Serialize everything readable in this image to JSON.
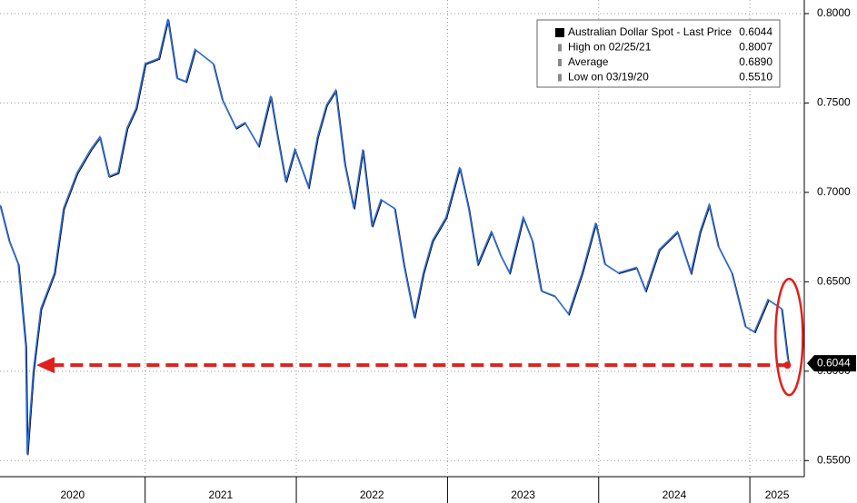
{
  "chart_data": {
    "type": "line",
    "legend": [
      {
        "label": "Australian Dollar Spot - Last Price",
        "value": "0.6044"
      },
      {
        "label": "High on 02/25/21",
        "value": "0.8007"
      },
      {
        "label": "Average",
        "value": "0.6890"
      },
      {
        "label": "Low on 03/19/20",
        "value": "0.5510"
      }
    ],
    "x": [
      2020.04,
      2020.1,
      2020.16,
      2020.21,
      2020.22,
      2020.26,
      2020.31,
      2020.4,
      2020.46,
      2020.55,
      2020.64,
      2020.7,
      2020.76,
      2020.82,
      2020.88,
      2020.94,
      2021.0,
      2021.09,
      2021.15,
      2021.21,
      2021.27,
      2021.33,
      2021.45,
      2021.51,
      2021.6,
      2021.66,
      2021.75,
      2021.83,
      2021.87,
      2021.93,
      2021.99,
      2022.08,
      2022.14,
      2022.2,
      2022.26,
      2022.32,
      2022.38,
      2022.44,
      2022.5,
      2022.56,
      2022.65,
      2022.71,
      2022.78,
      2022.84,
      2022.9,
      2022.99,
      2023.08,
      2023.14,
      2023.2,
      2023.29,
      2023.35,
      2023.41,
      2023.5,
      2023.56,
      2023.62,
      2023.71,
      2023.8,
      2023.89,
      2023.98,
      2024.04,
      2024.13,
      2024.25,
      2024.31,
      2024.4,
      2024.52,
      2024.61,
      2024.67,
      2024.73,
      2024.79,
      2024.88,
      2024.97,
      2025.03,
      2025.12,
      2025.21,
      2025.25,
      2025.26
    ],
    "series": [
      {
        "name": "Australian Dollar Spot - Last Price",
        "color": "#2f6fd6",
        "values": [
          0.693,
          0.673,
          0.66,
          0.614,
          0.5535,
          0.6,
          0.635,
          0.655,
          0.691,
          0.711,
          0.724,
          0.731,
          0.709,
          0.711,
          0.736,
          0.747,
          0.772,
          0.775,
          0.797,
          0.764,
          0.762,
          0.78,
          0.772,
          0.752,
          0.736,
          0.739,
          0.726,
          0.754,
          0.734,
          0.706,
          0.724,
          0.703,
          0.731,
          0.749,
          0.757,
          0.716,
          0.691,
          0.724,
          0.681,
          0.696,
          0.691,
          0.66,
          0.63,
          0.655,
          0.673,
          0.686,
          0.714,
          0.691,
          0.66,
          0.678,
          0.665,
          0.655,
          0.686,
          0.673,
          0.645,
          0.642,
          0.632,
          0.655,
          0.683,
          0.66,
          0.655,
          0.658,
          0.645,
          0.668,
          0.678,
          0.655,
          0.678,
          0.693,
          0.67,
          0.655,
          0.625,
          0.622,
          0.64,
          0.635,
          0.607,
          0.6044
        ]
      }
    ],
    "xlim": [
      2020.04,
      2025.36
    ],
    "ylim": [
      0.541,
      0.8076
    ],
    "xticks": [
      {
        "value": 2020.52,
        "label": "2020"
      },
      {
        "value": 2021.5,
        "label": "2021"
      },
      {
        "value": 2022.5,
        "label": "2022"
      },
      {
        "value": 2023.5,
        "label": "2023"
      },
      {
        "value": 2024.5,
        "label": "2024"
      },
      {
        "value": 2025.18,
        "label": "2025"
      }
    ],
    "xgrid": [
      2021,
      2022,
      2023,
      2024,
      2025
    ],
    "yticks": [
      {
        "value": 0.8,
        "label": "0.8000"
      },
      {
        "value": 0.75,
        "label": "0.7500"
      },
      {
        "value": 0.7,
        "label": "0.7000"
      },
      {
        "value": 0.65,
        "label": "0.6500"
      },
      {
        "value": 0.6,
        "label": "0.6000"
      },
      {
        "value": 0.55,
        "label": "0.5500"
      }
    ],
    "grid": true
  }
}
